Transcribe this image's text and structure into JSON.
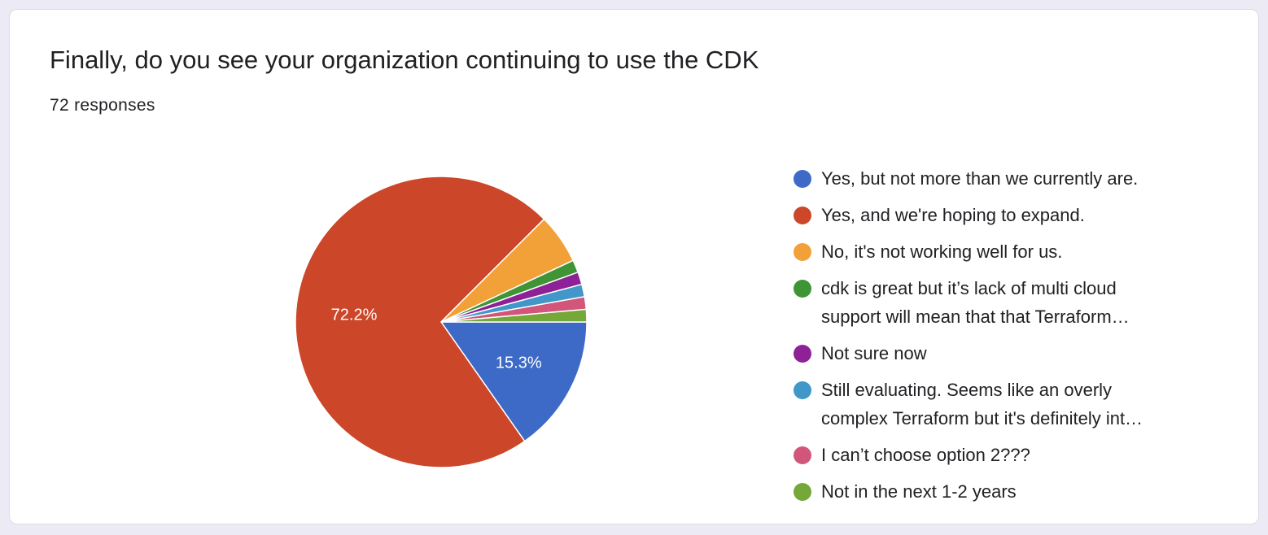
{
  "card": {
    "title": "Finally, do you see your organization continuing to use the CDK",
    "responses": "72 responses"
  },
  "chart_data": {
    "type": "pie",
    "total_responses": 72,
    "slices": [
      {
        "label": "Yes, but not more than we currently are.",
        "count": 11,
        "percent_label": "15.3%",
        "color": "#3d69c7"
      },
      {
        "label": "Yes, and we're hoping to expand.",
        "count": 52,
        "percent_label": "72.2%",
        "color": "#cc4629"
      },
      {
        "label": "No, it's not working well for us.",
        "count": 4,
        "percent_label": "",
        "color": "#f2a038"
      },
      {
        "label": "cdk is great but it’s lack of multi cloud support will mean that that Terraform…",
        "count": 1,
        "percent_label": "",
        "color": "#3f9535"
      },
      {
        "label": "Not sure now",
        "count": 1,
        "percent_label": "",
        "color": "#8e2197"
      },
      {
        "label": "Still evaluating. Seems like an overly complex Terraform but it's definitely int…",
        "count": 1,
        "percent_label": "",
        "color": "#4197c7"
      },
      {
        "label": "I can’t choose option 2???",
        "count": 1,
        "percent_label": "",
        "color": "#d2567a"
      },
      {
        "label": "Not in the next 1-2 years",
        "count": 1,
        "percent_label": "",
        "color": "#74a838"
      }
    ],
    "legend_position": "right"
  }
}
